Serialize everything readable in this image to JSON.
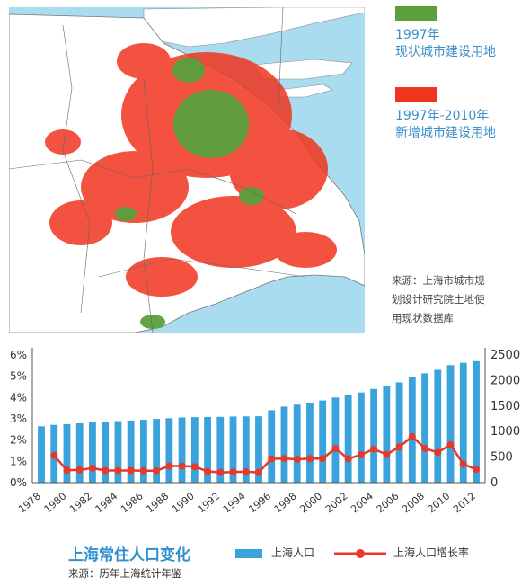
{
  "map_legend": {
    "existing": {
      "year": "1997年",
      "label": "现状城市建设用地",
      "color": "#5aa03c"
    },
    "new": {
      "year": "1997年-2010年",
      "label": "新增城市建设用地",
      "color": "#f0351e"
    },
    "source_line1": "来源：上海市城市规",
    "source_line2": "划设计研究院土地使",
    "source_line3": "用现状数据库"
  },
  "chart_title": "上海常住人口变化",
  "chart_source": "来源：历年上海统计年鉴",
  "colors": {
    "bar": "#3aa3dc",
    "line": "#e8382a",
    "water": "#aadcf0",
    "land": "#ffffff",
    "axis": "#555555"
  },
  "chart_data": {
    "type": "bar+line",
    "x": [
      1978,
      1979,
      1980,
      1981,
      1982,
      1983,
      1984,
      1985,
      1986,
      1987,
      1988,
      1989,
      1990,
      1991,
      1992,
      1993,
      1994,
      1995,
      1996,
      1997,
      1998,
      1999,
      2000,
      2001,
      2002,
      2003,
      2004,
      2005,
      2006,
      2007,
      2008,
      2009,
      2010,
      2011,
      2012
    ],
    "x_tick_labels": [
      "1978",
      "1980",
      "1982",
      "1984",
      "1986",
      "1988",
      "1990",
      "1992",
      "1994",
      "1996",
      "1998",
      "2000",
      "2002",
      "2004",
      "2006",
      "2008",
      "2010",
      "2012"
    ],
    "series": [
      {
        "name": "上海人口",
        "type": "bar",
        "axis": "right",
        "values": [
          1104,
          1132,
          1146,
          1163,
          1181,
          1194,
          1205,
          1217,
          1232,
          1249,
          1262,
          1276,
          1283,
          1287,
          1289,
          1295,
          1298,
          1301,
          1419,
          1489,
          1527,
          1567,
          1609,
          1668,
          1713,
          1766,
          1835,
          1890,
          1964,
          2064,
          2141,
          2210,
          2302,
          2347,
          2380
        ]
      },
      {
        "name": "上海人口增长率",
        "type": "line",
        "axis": "left",
        "values": [
          null,
          0.0128,
          0.0058,
          0.006,
          0.0068,
          0.0057,
          0.0057,
          0.0057,
          0.0056,
          0.0056,
          0.0078,
          0.0078,
          0.0075,
          0.0053,
          0.0048,
          0.005,
          0.0051,
          0.0048,
          0.0112,
          0.0113,
          0.011,
          0.0113,
          0.0113,
          0.0161,
          0.0112,
          0.0131,
          0.0158,
          0.0132,
          0.0168,
          0.0217,
          0.0161,
          0.0142,
          0.0178,
          0.0087,
          0.0062
        ]
      }
    ],
    "y_left": {
      "ticks": [
        "0%",
        "1%",
        "2%",
        "3%",
        "4%",
        "5%",
        "6%"
      ],
      "range": [
        0,
        0.06
      ]
    },
    "y_right": {
      "ticks": [
        "0",
        "500",
        "1000",
        "1500",
        "2000",
        "2500"
      ],
      "range": [
        0,
        2500
      ]
    },
    "legend_placement": "bottom",
    "grid": false
  }
}
